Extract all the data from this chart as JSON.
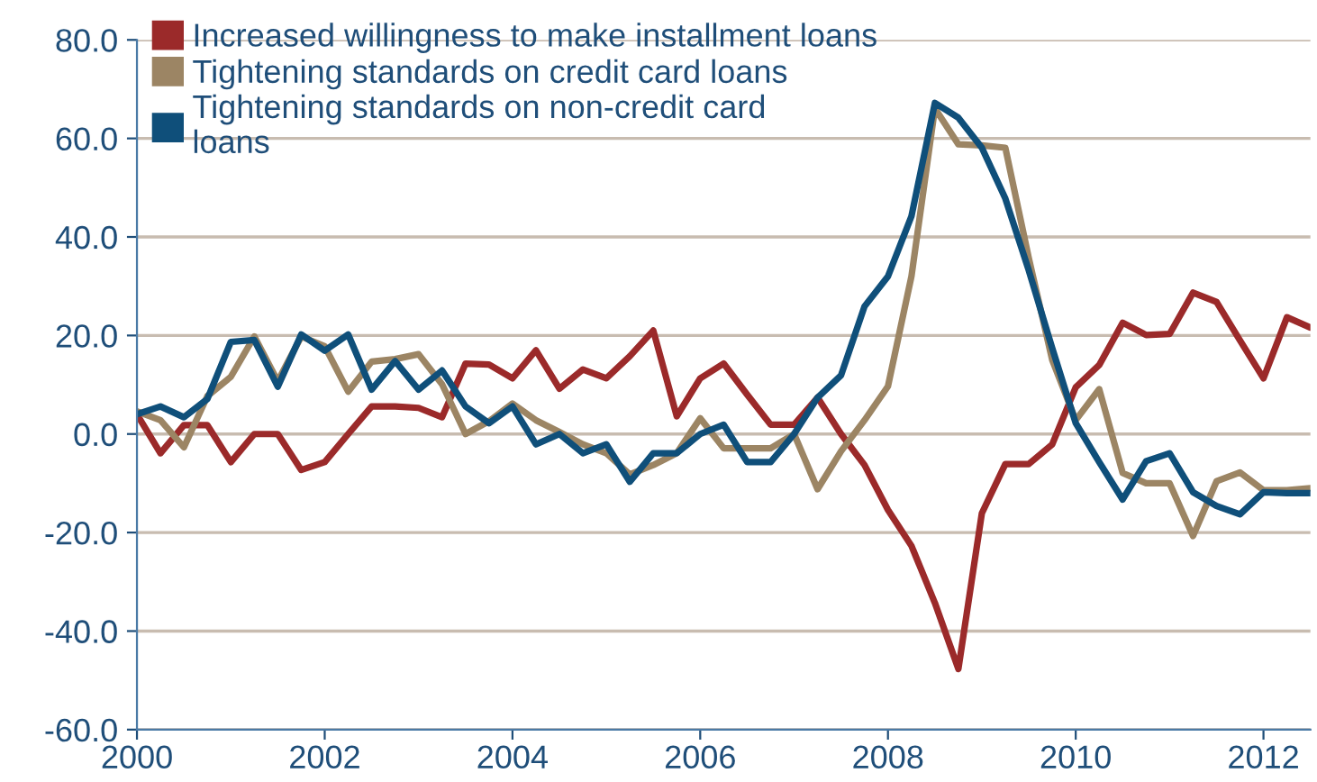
{
  "chart_data": {
    "type": "line",
    "x": [
      2000,
      2000.25,
      2000.5,
      2000.75,
      2001,
      2001.25,
      2001.5,
      2001.75,
      2002,
      2002.25,
      2002.5,
      2002.75,
      2003,
      2003.25,
      2003.5,
      2003.75,
      2004,
      2004.25,
      2004.5,
      2004.75,
      2005,
      2005.25,
      2005.5,
      2005.75,
      2006,
      2006.25,
      2006.5,
      2006.75,
      2007,
      2007.25,
      2007.5,
      2007.75,
      2008,
      2008.25,
      2008.5,
      2008.75,
      2009,
      2009.25,
      2009.5,
      2009.75,
      2010,
      2010.25,
      2010.5,
      2010.75,
      2011,
      2011.25,
      2011.5,
      2011.75,
      2012,
      2012.25,
      2012.5
    ],
    "series": [
      {
        "name": "Increased willingness to make installment loans",
        "color": "#9b2a2a",
        "values": [
          4.0,
          -3.9,
          1.8,
          1.8,
          -5.7,
          0,
          0,
          -7.3,
          -5.7,
          0,
          5.6,
          5.6,
          5.3,
          3.4,
          14.3,
          14.1,
          11.3,
          17.0,
          9.2,
          13.1,
          11.3,
          15.8,
          21.0,
          3.6,
          11.3,
          14.3,
          8.0,
          1.9,
          1.9,
          7.4,
          0,
          -6.3,
          -15.4,
          -22.7,
          -34.3,
          -47.7,
          -16.1,
          -6.1,
          -6.1,
          -2.1,
          9.5,
          14.0,
          22.6,
          20.1,
          20.3,
          28.7,
          26.8,
          19.0,
          11.3,
          23.7,
          21.6
        ]
      },
      {
        "name": "Tightening standards on credit card loans",
        "color": "#9c8564",
        "values": [
          4.6,
          2.8,
          -2.7,
          7.7,
          11.6,
          19.8,
          10.7,
          19.8,
          17.8,
          8.6,
          14.7,
          15.2,
          16.2,
          10.1,
          0,
          2.6,
          6.2,
          2.8,
          0.4,
          -2.1,
          -3.9,
          -8.2,
          -6.3,
          -3.9,
          3.2,
          -2.9,
          -2.9,
          -2.9,
          0,
          -11.2,
          -3.5,
          2.8,
          9.7,
          32.0,
          66.1,
          58.8,
          58.6,
          58.1,
          35.7,
          15.0,
          2.8,
          9.1,
          -7.9,
          -10.0,
          -10.0,
          -20.7,
          -9.6,
          -7.8,
          -11.4,
          -11.4,
          -11.0
        ]
      },
      {
        "name": "Tightening standards on non-credit card\nloans",
        "color": "#0f4f7a",
        "values": [
          4.0,
          5.6,
          3.4,
          7.1,
          18.7,
          19.1,
          9.6,
          20.2,
          16.9,
          20.2,
          9.0,
          14.8,
          9.0,
          12.9,
          5.6,
          2.2,
          5.6,
          -2.1,
          0,
          -3.9,
          -2.1,
          -9.7,
          -3.9,
          -3.9,
          0,
          1.9,
          -5.7,
          -5.7,
          0,
          7.4,
          11.9,
          25.9,
          32.0,
          44.2,
          67.2,
          64.2,
          58.1,
          47.8,
          33.2,
          17.4,
          2.2,
          -5.7,
          -13.3,
          -5.5,
          -3.9,
          -11.8,
          -14.6,
          -16.3,
          -11.8,
          -12.0,
          -12.0
        ]
      }
    ],
    "xlim": [
      2000,
      2012.5
    ],
    "xticks": [
      2000,
      2002,
      2004,
      2006,
      2008,
      2010,
      2012
    ],
    "ylim": [
      -60,
      80
    ],
    "yticks": [
      {
        "value": -60,
        "label": "-60.0"
      },
      {
        "value": -40,
        "label": "-40.0"
      },
      {
        "value": -20,
        "label": "-20.0"
      },
      {
        "value": 0,
        "label": "0.0"
      },
      {
        "value": 20,
        "label": "20.0"
      },
      {
        "value": 40,
        "label": "40.0"
      },
      {
        "value": 60,
        "label": "60.0"
      },
      {
        "value": 80,
        "label": "80.0"
      }
    ],
    "grid": "y",
    "legend": "top left",
    "marker": "none",
    "line_style": "solid"
  }
}
